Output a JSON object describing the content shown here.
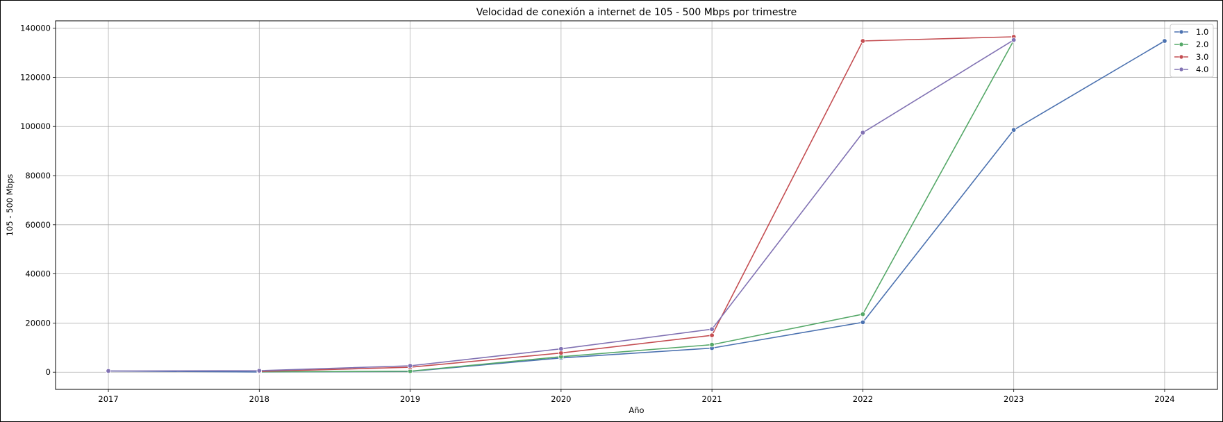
{
  "chart_data": {
    "type": "line",
    "title": "Velocidad de conexión a internet de 105 - 500 Mbps por trimestre",
    "xlabel": "Año",
    "ylabel": "105 - 500 Mbps",
    "xlim": [
      2016.65,
      2024.35
    ],
    "ylim": [
      -7000,
      143000
    ],
    "x_ticks": [
      2017,
      2018,
      2019,
      2020,
      2021,
      2022,
      2023,
      2024
    ],
    "y_ticks": [
      0,
      20000,
      40000,
      60000,
      80000,
      100000,
      120000,
      140000
    ],
    "grid": true,
    "legend_position": "top-right",
    "series": [
      {
        "name": "1.0",
        "color": "#4c72b0",
        "x": [
          2017,
          2018,
          2019,
          2020,
          2021,
          2022,
          2023,
          2024
        ],
        "y": [
          500,
          100,
          300,
          5800,
          9800,
          20300,
          98600,
          134800
        ]
      },
      {
        "name": "2.0",
        "color": "#55a868",
        "x": [
          2018,
          2019,
          2020,
          2021,
          2022,
          2023
        ],
        "y": [
          150,
          400,
          6300,
          11200,
          23600,
          135000
        ]
      },
      {
        "name": "3.0",
        "color": "#c44e52",
        "x": [
          2018,
          2019,
          2020,
          2021,
          2022,
          2023
        ],
        "y": [
          300,
          2000,
          7800,
          15000,
          134800,
          136500
        ]
      },
      {
        "name": "4.0",
        "color": "#8172b3",
        "x": [
          2017,
          2018,
          2019,
          2020,
          2021,
          2022,
          2023
        ],
        "y": [
          500,
          600,
          2600,
          9500,
          17500,
          97500,
          135200
        ]
      }
    ]
  }
}
